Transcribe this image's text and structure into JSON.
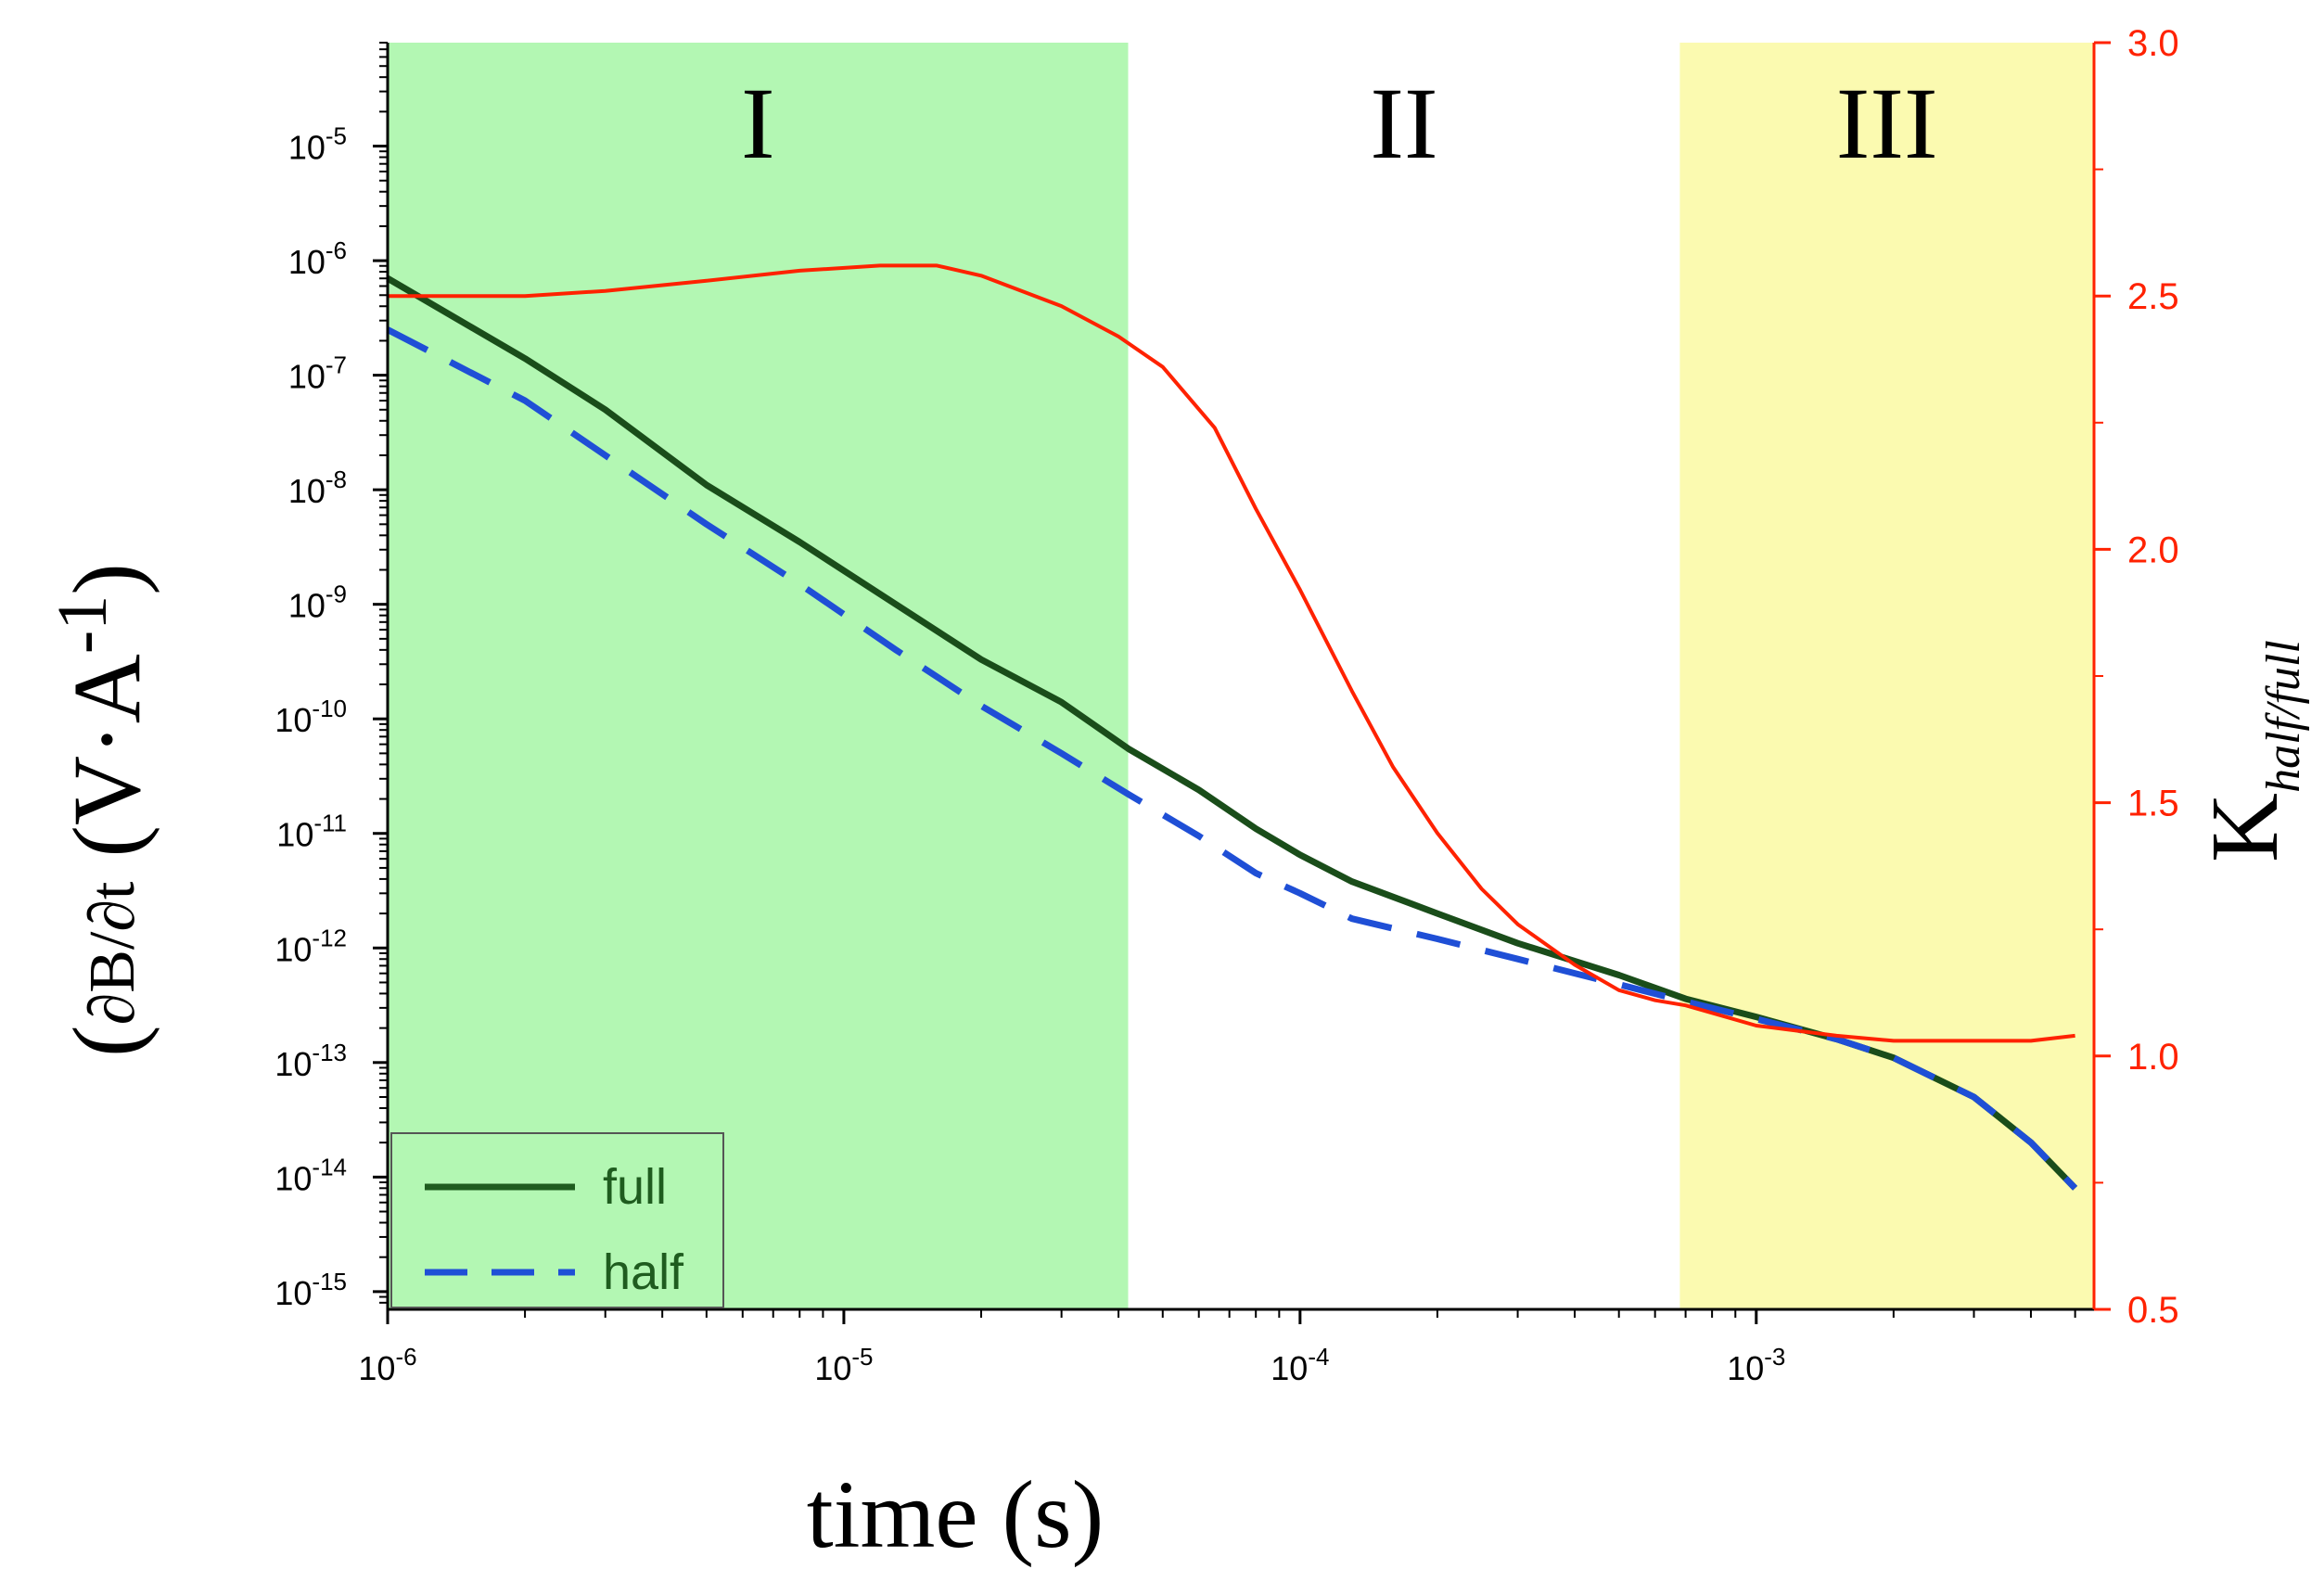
{
  "chart_data": {
    "type": "line",
    "xlabel": "time (s)",
    "x_scale": "log",
    "xlim": [
      1e-06,
      0.0055
    ],
    "ylabel_left": {
      "open_paren": "(",
      "main": "∂B/∂t",
      "units_open": "(V·A",
      "units_exp": "-1",
      "close_paren": ")"
    },
    "y_left_scale": "log",
    "y_left_lim": [
      7e-16,
      8e-05
    ],
    "ylabel_right": {
      "main": "K",
      "subscript": "half/full"
    },
    "y_right_lim": [
      0.5,
      3.0
    ],
    "x_ticks": [
      {
        "value": 1e-06,
        "base": "10",
        "exp": "-6"
      },
      {
        "value": 1e-05,
        "base": "10",
        "exp": "-5"
      },
      {
        "value": 0.0001,
        "base": "10",
        "exp": "-4"
      },
      {
        "value": 0.001,
        "base": "10",
        "exp": "-3"
      }
    ],
    "y_left_ticks": [
      {
        "value": 1e-05,
        "base": "10",
        "exp": "-5"
      },
      {
        "value": 1e-06,
        "base": "10",
        "exp": "-6"
      },
      {
        "value": 1e-07,
        "base": "10",
        "exp": "-7"
      },
      {
        "value": 1e-08,
        "base": "10",
        "exp": "-8"
      },
      {
        "value": 1e-09,
        "base": "10",
        "exp": "-9"
      },
      {
        "value": 1e-10,
        "base": "10",
        "exp": "-10"
      },
      {
        "value": 1e-11,
        "base": "10",
        "exp": "-11"
      },
      {
        "value": 1e-12,
        "base": "10",
        "exp": "-12"
      },
      {
        "value": 1e-13,
        "base": "10",
        "exp": "-13"
      },
      {
        "value": 1e-14,
        "base": "10",
        "exp": "-14"
      },
      {
        "value": 1e-15,
        "base": "10",
        "exp": "-15"
      }
    ],
    "y_right_ticks": [
      "0.5",
      "1.0",
      "1.5",
      "2.0",
      "2.5",
      "3.0"
    ],
    "regions": [
      {
        "label": "I",
        "x_start": 1e-06,
        "x_end": 4.2e-05,
        "color": "#b3f7b3"
      },
      {
        "label": "II",
        "x_start": 4.2e-05,
        "x_end": 0.00068,
        "color": "#ffffff"
      },
      {
        "label": "III",
        "x_start": 0.00068,
        "x_end": 0.0055,
        "color": "#fbfab0"
      }
    ],
    "series": [
      {
        "name": "full",
        "axis": "left",
        "style": "solid",
        "color": "#1a4d1a",
        "x": [
          1e-06,
          2e-06,
          3e-06,
          5e-06,
          8e-06,
          1.3e-05,
          2e-05,
          3e-05,
          4.2e-05,
          6e-05,
          8e-05,
          0.0001,
          0.00013,
          0.0002,
          0.0003,
          0.0005,
          0.0007,
          0.001,
          0.0015,
          0.002,
          0.003,
          0.004,
          0.005
        ],
        "values": [
          7e-07,
          1.4e-07,
          5e-08,
          1.1e-08,
          3.5e-09,
          1e-09,
          3.3e-10,
          1.4e-10,
          5.5e-11,
          2.4e-11,
          1.1e-11,
          6.5e-12,
          3.8e-12,
          2e-12,
          1.1e-12,
          5.8e-13,
          3.6e-13,
          2.5e-13,
          1.6e-13,
          1.1e-13,
          5e-14,
          2e-14,
          8e-15
        ]
      },
      {
        "name": "half",
        "axis": "left",
        "style": "dashed",
        "color": "#1f4fd6",
        "x": [
          1e-06,
          2e-06,
          3e-06,
          5e-06,
          8e-06,
          1.3e-05,
          2e-05,
          3e-05,
          4.2e-05,
          6e-05,
          8e-05,
          0.0001,
          0.00013,
          0.0002,
          0.0003,
          0.0005,
          0.0007,
          0.001,
          0.0015,
          0.002,
          0.003,
          0.004,
          0.005
        ],
        "values": [
          2.5e-07,
          6e-08,
          2e-08,
          5e-09,
          1.5e-09,
          4e-10,
          1.3e-10,
          5e-11,
          2.2e-11,
          9.5e-12,
          4.5e-12,
          3e-12,
          1.8e-12,
          1.2e-12,
          8e-13,
          4.8e-13,
          3.4e-13,
          2.4e-13,
          1.6e-13,
          1.1e-13,
          5e-14,
          2e-14,
          8e-15
        ]
      },
      {
        "name": "K",
        "axis": "right",
        "style": "solid",
        "color": "#ff2200",
        "x": [
          1e-06,
          2e-06,
          3e-06,
          5e-06,
          8e-06,
          1.2e-05,
          1.6e-05,
          2e-05,
          3e-05,
          4e-05,
          5e-05,
          6.5e-05,
          8e-05,
          0.0001,
          0.00013,
          0.00016,
          0.0002,
          0.00025,
          0.0003,
          0.0004,
          0.0005,
          0.0006,
          0.0007,
          0.001,
          0.0015,
          0.002,
          0.003,
          0.004,
          0.005
        ],
        "values": [
          2.5,
          2.5,
          2.51,
          2.53,
          2.55,
          2.56,
          2.56,
          2.54,
          2.48,
          2.42,
          2.36,
          2.24,
          2.08,
          1.92,
          1.72,
          1.57,
          1.44,
          1.33,
          1.26,
          1.18,
          1.13,
          1.11,
          1.1,
          1.06,
          1.04,
          1.03,
          1.03,
          1.03,
          1.04
        ]
      }
    ],
    "legend": {
      "placement": "bottom-left",
      "entries": [
        {
          "label": "full",
          "style": "solid",
          "color": "#1f5c1f"
        },
        {
          "label": "half",
          "style": "dashed",
          "color": "#1f4fd6"
        }
      ]
    },
    "colors": {
      "left_axis": "#000000",
      "right_axis": "#ff2200"
    }
  }
}
